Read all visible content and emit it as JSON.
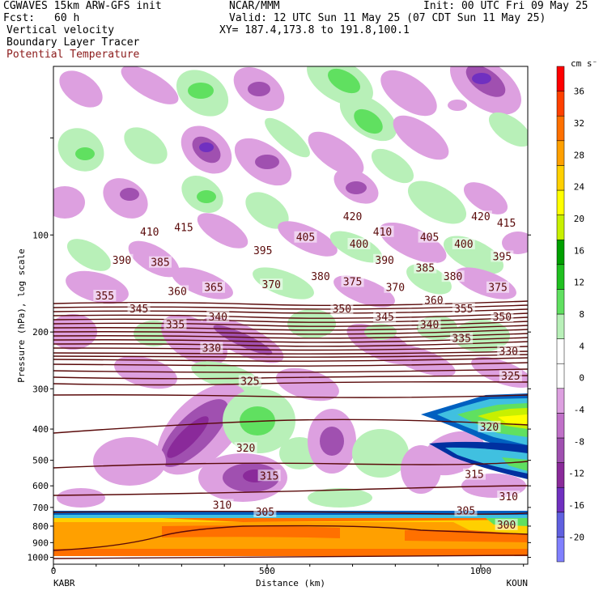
{
  "header": {
    "model": "CGWAVES 15km ARW-GFS init",
    "org": "NCAR/MMM",
    "init": "Init: 00 UTC Fri 09 May 25",
    "fcst_label": "Fcst:",
    "fcst_value": "60 h",
    "valid": "Valid: 12 UTC Sun 11 May 25 (07 CDT Sun 11 May 25)",
    "field1": "Vertical velocity",
    "xy": "XY= 187.4,173.8 to 191.8,100.1",
    "field2": "Boundary Layer Tracer",
    "field3": "Potential Temperature",
    "field3_color": "#8b1a1a"
  },
  "colorbar": {
    "units": "cm s⁻¹",
    "levels": [
      "-20",
      "-16",
      "-12",
      "-8",
      "-4",
      "0",
      "4",
      "8",
      "12",
      "16",
      "20",
      "24",
      "28",
      "32",
      "36"
    ],
    "colors": [
      "#8080ff",
      "#6060e0",
      "#7030c0",
      "#8a2a9a",
      "#a050b0",
      "#c070c8",
      "#dda0e0",
      "#ffffff",
      "#ffffff",
      "#b8f0b8",
      "#60e060",
      "#20c020",
      "#00a000",
      "#c8f000",
      "#ffff00",
      "#ffd000",
      "#ffa000",
      "#ff7000",
      "#ff4000",
      "#ff0000"
    ]
  },
  "chart_data": {
    "type": "cross-section",
    "title": "Vertical velocity / Boundary Layer Tracer / Potential Temperature",
    "xlabel": "Distance (km)",
    "ylabel": "Pressure (hPa), log scale",
    "x_ticks": [
      "0",
      "500",
      "1000"
    ],
    "x_range": [
      0,
      1110
    ],
    "y_ticks": [
      "100",
      "200",
      "300",
      "400",
      "500",
      "600",
      "700",
      "800",
      "900",
      "1000"
    ],
    "x_endpoints": [
      "KABR",
      "KOUN"
    ],
    "theta_labels": [
      {
        "v": "420",
        "x": 700,
        "p": 88
      },
      {
        "v": "420",
        "x": 1000,
        "p": 88
      },
      {
        "v": "410",
        "x": 225,
        "p": 98
      },
      {
        "v": "415",
        "x": 305,
        "p": 95
      },
      {
        "v": "410",
        "x": 770,
        "p": 98
      },
      {
        "v": "415",
        "x": 1060,
        "p": 92
      },
      {
        "v": "405",
        "x": 590,
        "p": 102
      },
      {
        "v": "405",
        "x": 880,
        "p": 102
      },
      {
        "v": "400",
        "x": 715,
        "p": 107
      },
      {
        "v": "400",
        "x": 960,
        "p": 107
      },
      {
        "v": "390",
        "x": 160,
        "p": 120
      },
      {
        "v": "385",
        "x": 250,
        "p": 122
      },
      {
        "v": "395",
        "x": 490,
        "p": 112
      },
      {
        "v": "390",
        "x": 775,
        "p": 120
      },
      {
        "v": "395",
        "x": 1050,
        "p": 117
      },
      {
        "v": "385",
        "x": 870,
        "p": 127
      },
      {
        "v": "380",
        "x": 625,
        "p": 135
      },
      {
        "v": "375",
        "x": 700,
        "p": 140
      },
      {
        "v": "380",
        "x": 935,
        "p": 135
      },
      {
        "v": "370",
        "x": 510,
        "p": 143
      },
      {
        "v": "370",
        "x": 800,
        "p": 146
      },
      {
        "v": "365",
        "x": 375,
        "p": 146
      },
      {
        "v": "360",
        "x": 290,
        "p": 150
      },
      {
        "v": "375",
        "x": 1040,
        "p": 146
      },
      {
        "v": "355",
        "x": 120,
        "p": 155
      },
      {
        "v": "360",
        "x": 890,
        "p": 160
      },
      {
        "v": "345",
        "x": 200,
        "p": 170
      },
      {
        "v": "350",
        "x": 675,
        "p": 170
      },
      {
        "v": "355",
        "x": 960,
        "p": 170
      },
      {
        "v": "345",
        "x": 775,
        "p": 180
      },
      {
        "v": "350",
        "x": 1050,
        "p": 180
      },
      {
        "v": "340",
        "x": 385,
        "p": 180
      },
      {
        "v": "335",
        "x": 285,
        "p": 190
      },
      {
        "v": "340",
        "x": 880,
        "p": 190
      },
      {
        "v": "335",
        "x": 955,
        "p": 210
      },
      {
        "v": "330",
        "x": 370,
        "p": 225
      },
      {
        "v": "330",
        "x": 1065,
        "p": 230
      },
      {
        "v": "325",
        "x": 460,
        "p": 285
      },
      {
        "v": "325",
        "x": 1070,
        "p": 275
      },
      {
        "v": "320",
        "x": 450,
        "p": 460
      },
      {
        "v": "320",
        "x": 1020,
        "p": 395
      },
      {
        "v": "315",
        "x": 505,
        "p": 560
      },
      {
        "v": "315",
        "x": 985,
        "p": 555
      },
      {
        "v": "310",
        "x": 395,
        "p": 690
      },
      {
        "v": "310",
        "x": 1065,
        "p": 650
      },
      {
        "v": "305",
        "x": 495,
        "p": 725
      },
      {
        "v": "305",
        "x": 965,
        "p": 720
      },
      {
        "v": "300",
        "x": 1060,
        "p": 795
      }
    ]
  }
}
